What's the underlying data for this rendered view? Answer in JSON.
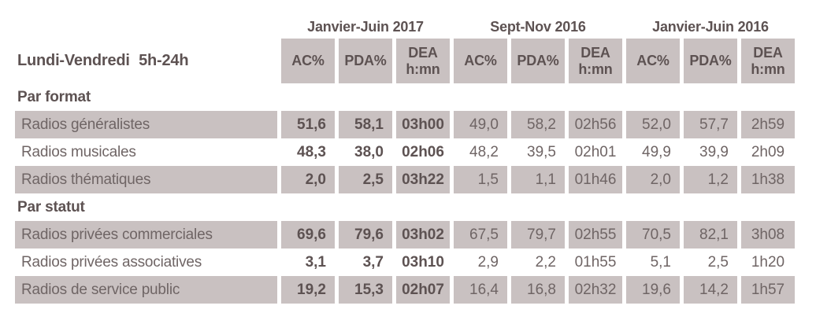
{
  "title": "Lundi-Vendredi 5h-24h",
  "periods": [
    {
      "label": "Janvier-Juin 2017"
    },
    {
      "label": "Sept-Nov 2016"
    },
    {
      "label": "Janvier-Juin 2016"
    }
  ],
  "columns": {
    "ac": "AC%",
    "pda": "PDA%",
    "dea_line1": "DEA",
    "dea_line2": "h:mn"
  },
  "sections": [
    {
      "label": "Par format",
      "rows": [
        {
          "label": "Radios généralistes",
          "values": [
            "51,6",
            "58,1",
            "03h00",
            "49,0",
            "58,2",
            "02h56",
            "52,0",
            "57,7",
            "2h59"
          ]
        },
        {
          "label": "Radios musicales",
          "values": [
            "48,3",
            "38,0",
            "02h06",
            "48,2",
            "39,5",
            "02h01",
            "49,9",
            "39,9",
            "2h09"
          ]
        },
        {
          "label": "Radios thématiques",
          "values": [
            "2,0",
            "2,5",
            "03h22",
            "1,5",
            "1,1",
            "01h46",
            "2,0",
            "1,2",
            "1h38"
          ]
        }
      ]
    },
    {
      "label": "Par statut",
      "rows": [
        {
          "label": "Radios privées commerciales",
          "values": [
            "69,6",
            "79,6",
            "03h02",
            "67,5",
            "79,7",
            "02h55",
            "70,5",
            "82,1",
            "3h08"
          ]
        },
        {
          "label": "Radios privées associatives",
          "values": [
            "3,1",
            "3,7",
            "03h10",
            "2,9",
            "2,2",
            "01h55",
            "5,1",
            "2,5",
            "1h20"
          ]
        },
        {
          "label": "Radios de service public",
          "values": [
            "19,2",
            "15,3",
            "02h07",
            "16,4",
            "16,8",
            "02h32",
            "19,6",
            "14,2",
            "1h57"
          ]
        }
      ]
    }
  ],
  "colors": {
    "cell_background": "#c9c1c1",
    "text_regular": "#6f6565",
    "text_bold": "#5d5252"
  }
}
